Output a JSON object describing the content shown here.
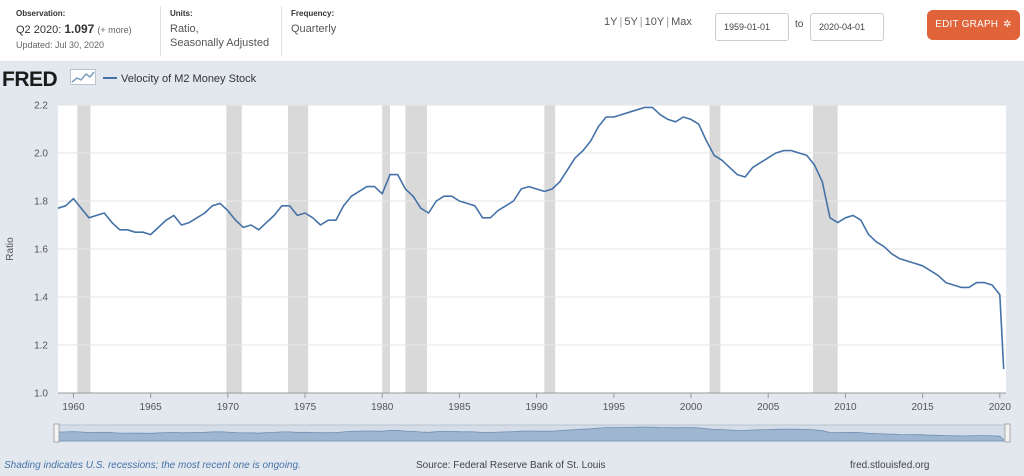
{
  "header": {
    "observation": {
      "label": "Observation:",
      "period": "Q2 2020:",
      "value": "1.097",
      "more": "(+ more)",
      "updated": "Updated: Jul 30, 2020"
    },
    "units": {
      "label": "Units:",
      "line1": "Ratio,",
      "line2": "Seasonally Adjusted"
    },
    "frequency": {
      "label": "Frequency:",
      "value": "Quarterly"
    },
    "ranges": [
      "1Y",
      "5Y",
      "10Y",
      "Max"
    ],
    "start_date": "1959-01-01",
    "to_label": "to",
    "end_date": "2020-04-01",
    "edit_button": "EDIT GRAPH",
    "edit_icon": "gear-icon",
    "accent_color": "#e1633a"
  },
  "brand": {
    "logo": "FRED"
  },
  "footer": {
    "shading_note": "Shading indicates U.S. recessions; the most recent one is ongoing.",
    "source": "Source: Federal Reserve Bank of St. Louis",
    "site": "fred.stlouisfed.org"
  },
  "chart_data": {
    "type": "line",
    "title": "",
    "ylabel": "Ratio",
    "xlabel": "",
    "ylim": [
      1.0,
      2.2
    ],
    "xlim": [
      1959,
      2020.4
    ],
    "yticks": [
      "1.0",
      "1.2",
      "1.4",
      "1.6",
      "1.8",
      "2.0",
      "2.2"
    ],
    "xticks": [
      "1960",
      "1965",
      "1970",
      "1975",
      "1980",
      "1985",
      "1990",
      "1995",
      "2000",
      "2005",
      "2010",
      "2015",
      "2020"
    ],
    "grid": true,
    "line_color": "#4572a7",
    "recession_color": "#d9d9d9",
    "recessions": [
      [
        1960.25,
        1961.1
      ],
      [
        1969.9,
        1970.9
      ],
      [
        1973.9,
        1975.2
      ],
      [
        1980.0,
        1980.5
      ],
      [
        1981.5,
        1982.9
      ],
      [
        1990.5,
        1991.2
      ],
      [
        2001.2,
        2001.9
      ],
      [
        2007.9,
        2009.5
      ]
    ],
    "series": [
      {
        "name": "Velocity of M2 Money Stock",
        "x": [
          1959.0,
          1959.5,
          1960.0,
          1960.5,
          1961.0,
          1961.5,
          1962.0,
          1962.5,
          1963.0,
          1963.5,
          1964.0,
          1964.5,
          1965.0,
          1965.5,
          1966.0,
          1966.5,
          1967.0,
          1967.5,
          1968.0,
          1968.5,
          1969.0,
          1969.5,
          1970.0,
          1970.5,
          1971.0,
          1971.5,
          1972.0,
          1972.5,
          1973.0,
          1973.5,
          1974.0,
          1974.5,
          1975.0,
          1975.5,
          1976.0,
          1976.5,
          1977.0,
          1977.5,
          1978.0,
          1978.5,
          1979.0,
          1979.5,
          1980.0,
          1980.5,
          1981.0,
          1981.5,
          1982.0,
          1982.5,
          1983.0,
          1983.5,
          1984.0,
          1984.5,
          1985.0,
          1985.5,
          1986.0,
          1986.5,
          1987.0,
          1987.5,
          1988.0,
          1988.5,
          1989.0,
          1989.5,
          1990.0,
          1990.5,
          1991.0,
          1991.5,
          1992.0,
          1992.5,
          1993.0,
          1993.5,
          1994.0,
          1994.5,
          1995.0,
          1995.5,
          1996.0,
          1996.5,
          1997.0,
          1997.5,
          1998.0,
          1998.5,
          1999.0,
          1999.5,
          2000.0,
          2000.5,
          2001.0,
          2001.5,
          2002.0,
          2002.5,
          2003.0,
          2003.5,
          2004.0,
          2004.5,
          2005.0,
          2005.5,
          2006.0,
          2006.5,
          2007.0,
          2007.5,
          2008.0,
          2008.5,
          2009.0,
          2009.5,
          2010.0,
          2010.5,
          2011.0,
          2011.5,
          2012.0,
          2012.5,
          2013.0,
          2013.5,
          2014.0,
          2014.5,
          2015.0,
          2015.5,
          2016.0,
          2016.5,
          2017.0,
          2017.5,
          2018.0,
          2018.5,
          2019.0,
          2019.5,
          2020.0,
          2020.25
        ],
        "y": [
          1.77,
          1.78,
          1.81,
          1.77,
          1.73,
          1.74,
          1.75,
          1.71,
          1.68,
          1.68,
          1.67,
          1.67,
          1.66,
          1.69,
          1.72,
          1.74,
          1.7,
          1.71,
          1.73,
          1.75,
          1.78,
          1.79,
          1.76,
          1.72,
          1.69,
          1.7,
          1.68,
          1.71,
          1.74,
          1.78,
          1.78,
          1.74,
          1.75,
          1.73,
          1.7,
          1.72,
          1.72,
          1.78,
          1.82,
          1.84,
          1.86,
          1.86,
          1.83,
          1.91,
          1.91,
          1.85,
          1.82,
          1.77,
          1.75,
          1.8,
          1.82,
          1.82,
          1.8,
          1.79,
          1.78,
          1.73,
          1.73,
          1.76,
          1.78,
          1.8,
          1.85,
          1.86,
          1.85,
          1.84,
          1.85,
          1.88,
          1.93,
          1.98,
          2.01,
          2.05,
          2.11,
          2.15,
          2.15,
          2.16,
          2.17,
          2.18,
          2.19,
          2.19,
          2.16,
          2.14,
          2.13,
          2.15,
          2.14,
          2.12,
          2.05,
          1.99,
          1.97,
          1.94,
          1.91,
          1.9,
          1.94,
          1.96,
          1.98,
          2.0,
          2.01,
          2.01,
          2.0,
          1.99,
          1.95,
          1.88,
          1.73,
          1.71,
          1.73,
          1.74,
          1.72,
          1.66,
          1.63,
          1.61,
          1.58,
          1.56,
          1.55,
          1.54,
          1.53,
          1.51,
          1.49,
          1.46,
          1.45,
          1.44,
          1.44,
          1.46,
          1.46,
          1.45,
          1.41,
          1.1
        ]
      }
    ]
  }
}
